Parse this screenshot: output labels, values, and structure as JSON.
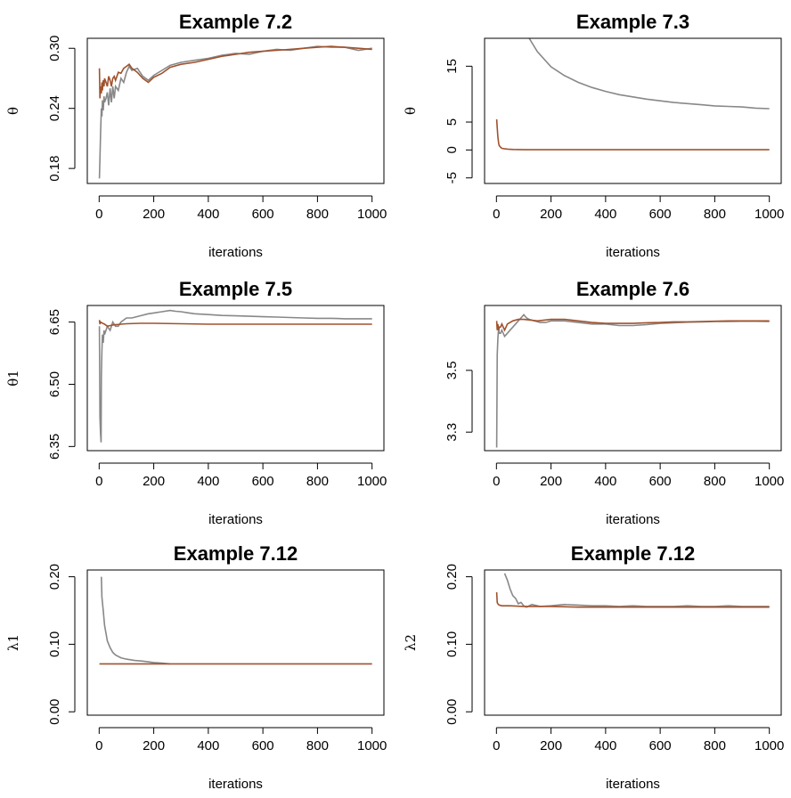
{
  "chart_data": [
    {
      "type": "line",
      "title": "Example 7.2",
      "xlabel": "iterations",
      "ylabel": "θ",
      "xlim": [
        0,
        1000
      ],
      "ylim": [
        0.165,
        0.31
      ],
      "xticks": [
        0,
        200,
        400,
        600,
        800,
        1000
      ],
      "yticks": [
        0.18,
        0.24,
        0.3
      ],
      "ytick_labels": [
        "0.18",
        "0.24",
        "0.30"
      ],
      "series": [
        {
          "color": "#888888",
          "x": [
            1,
            3,
            5,
            8,
            10,
            12,
            15,
            18,
            20,
            25,
            30,
            35,
            40,
            45,
            50,
            55,
            60,
            70,
            80,
            90,
            100,
            110,
            120,
            140,
            160,
            180,
            200,
            230,
            260,
            300,
            350,
            400,
            450,
            500,
            550,
            600,
            650,
            700,
            750,
            800,
            850,
            900,
            950,
            1000
          ],
          "y": [
            0.17,
            0.19,
            0.215,
            0.24,
            0.232,
            0.248,
            0.238,
            0.252,
            0.246,
            0.25,
            0.256,
            0.243,
            0.26,
            0.246,
            0.262,
            0.25,
            0.262,
            0.258,
            0.27,
            0.266,
            0.276,
            0.282,
            0.278,
            0.28,
            0.272,
            0.268,
            0.273,
            0.278,
            0.283,
            0.286,
            0.288,
            0.29,
            0.293,
            0.295,
            0.294,
            0.297,
            0.299,
            0.298,
            0.3,
            0.302,
            0.301,
            0.301,
            0.298,
            0.3
          ]
        },
        {
          "color": "#a0522d",
          "x": [
            1,
            3,
            5,
            8,
            10,
            12,
            15,
            18,
            20,
            25,
            30,
            35,
            40,
            45,
            50,
            55,
            60,
            70,
            80,
            90,
            100,
            110,
            120,
            140,
            160,
            180,
            200,
            230,
            260,
            300,
            350,
            400,
            450,
            500,
            550,
            600,
            650,
            700,
            750,
            800,
            850,
            900,
            950,
            1000
          ],
          "y": [
            0.28,
            0.25,
            0.262,
            0.255,
            0.266,
            0.258,
            0.268,
            0.262,
            0.27,
            0.266,
            0.262,
            0.272,
            0.268,
            0.262,
            0.27,
            0.272,
            0.268,
            0.276,
            0.275,
            0.28,
            0.282,
            0.284,
            0.28,
            0.276,
            0.27,
            0.266,
            0.271,
            0.275,
            0.281,
            0.284,
            0.286,
            0.289,
            0.292,
            0.294,
            0.296,
            0.297,
            0.298,
            0.299,
            0.3,
            0.301,
            0.302,
            0.301,
            0.3,
            0.299
          ]
        }
      ]
    },
    {
      "type": "line",
      "title": "Example 7.3",
      "xlabel": "iterations",
      "ylabel": "θ",
      "xlim": [
        0,
        1000
      ],
      "ylim": [
        -6,
        20
      ],
      "xticks": [
        0,
        200,
        400,
        600,
        800,
        1000
      ],
      "yticks": [
        -5,
        0,
        5,
        15
      ],
      "ytick_labels": [
        "-5",
        "0",
        "5",
        "15"
      ],
      "series": [
        {
          "color": "#888888",
          "x": [
            120,
            150,
            200,
            250,
            300,
            350,
            400,
            450,
            500,
            550,
            600,
            650,
            700,
            750,
            800,
            850,
            900,
            950,
            1000
          ],
          "y": [
            20.0,
            17.6,
            14.9,
            13.3,
            12.1,
            11.2,
            10.5,
            9.9,
            9.5,
            9.1,
            8.8,
            8.5,
            8.3,
            8.1,
            7.9,
            7.8,
            7.7,
            7.5,
            7.4
          ]
        },
        {
          "color": "#a0522d",
          "x": [
            1,
            3,
            5,
            8,
            10,
            15,
            20,
            30,
            40,
            60,
            100,
            200,
            400,
            600,
            800,
            1000
          ],
          "y": [
            5.5,
            4.0,
            2.4,
            1.2,
            0.8,
            0.5,
            0.3,
            0.2,
            0.15,
            0.1,
            0.05,
            0.05,
            0.05,
            0.05,
            0.05,
            0.05
          ]
        }
      ]
    },
    {
      "type": "line",
      "title": "Example 7.5",
      "xlabel": "iterations",
      "ylabel": "θ1",
      "xlim": [
        0,
        1000
      ],
      "ylim": [
        6.34,
        6.69
      ],
      "xticks": [
        0,
        200,
        400,
        600,
        800,
        1000
      ],
      "yticks": [
        6.35,
        6.5,
        6.65
      ],
      "ytick_labels": [
        "6.35",
        "6.50",
        "6.65"
      ],
      "series": [
        {
          "color": "#888888",
          "x": [
            1,
            3,
            5,
            7,
            8,
            10,
            12,
            15,
            18,
            20,
            25,
            30,
            40,
            50,
            60,
            70,
            80,
            100,
            120,
            150,
            180,
            200,
            230,
            260,
            280,
            300,
            330,
            350,
            400,
            450,
            500,
            550,
            600,
            650,
            700,
            750,
            800,
            850,
            900,
            950,
            1000
          ],
          "y": [
            6.64,
            6.42,
            6.38,
            6.36,
            6.52,
            6.58,
            6.62,
            6.6,
            6.63,
            6.62,
            6.63,
            6.64,
            6.63,
            6.65,
            6.64,
            6.64,
            6.65,
            6.66,
            6.66,
            6.665,
            6.67,
            6.672,
            6.675,
            6.678,
            6.676,
            6.675,
            6.672,
            6.67,
            6.668,
            6.666,
            6.665,
            6.664,
            6.663,
            6.662,
            6.661,
            6.66,
            6.659,
            6.659,
            6.658,
            6.658,
            6.658
          ]
        },
        {
          "color": "#a0522d",
          "x": [
            1,
            3,
            5,
            10,
            20,
            30,
            50,
            80,
            100,
            150,
            200,
            300,
            400,
            500,
            600,
            700,
            800,
            900,
            1000
          ],
          "y": [
            6.655,
            6.645,
            6.65,
            6.648,
            6.645,
            6.64,
            6.643,
            6.645,
            6.646,
            6.647,
            6.647,
            6.646,
            6.645,
            6.645,
            6.645,
            6.645,
            6.645,
            6.645,
            6.645
          ]
        }
      ]
    },
    {
      "type": "line",
      "title": "Example 7.6",
      "xlabel": "iterations",
      "ylabel": "",
      "xlim": [
        0,
        1000
      ],
      "ylim": [
        3.24,
        3.71
      ],
      "xticks": [
        0,
        200,
        400,
        600,
        800,
        1000
      ],
      "yticks": [
        3.3,
        3.5
      ],
      "ytick_labels": [
        "3.3",
        "3.5"
      ],
      "series": [
        {
          "color": "#888888",
          "x": [
            1,
            3,
            5,
            8,
            10,
            15,
            20,
            30,
            40,
            50,
            60,
            70,
            80,
            90,
            100,
            110,
            120,
            140,
            160,
            180,
            200,
            250,
            300,
            350,
            400,
            450,
            500,
            550,
            600,
            650,
            700,
            750,
            800,
            850,
            900,
            950,
            1000
          ],
          "y": [
            3.25,
            3.55,
            3.6,
            3.64,
            3.62,
            3.62,
            3.63,
            3.61,
            3.62,
            3.63,
            3.64,
            3.65,
            3.66,
            3.67,
            3.68,
            3.67,
            3.665,
            3.66,
            3.655,
            3.655,
            3.66,
            3.66,
            3.655,
            3.65,
            3.65,
            3.645,
            3.645,
            3.648,
            3.652,
            3.654,
            3.656,
            3.657,
            3.658,
            3.658,
            3.659,
            3.659,
            3.658
          ]
        },
        {
          "color": "#a0522d",
          "x": [
            1,
            3,
            5,
            8,
            10,
            15,
            20,
            30,
            40,
            60,
            80,
            100,
            150,
            200,
            250,
            300,
            350,
            400,
            450,
            500,
            550,
            600,
            650,
            700,
            750,
            800,
            850,
            900,
            950,
            1000
          ],
          "y": [
            3.66,
            3.63,
            3.65,
            3.63,
            3.64,
            3.64,
            3.65,
            3.63,
            3.65,
            3.66,
            3.665,
            3.665,
            3.66,
            3.665,
            3.665,
            3.66,
            3.655,
            3.652,
            3.652,
            3.652,
            3.654,
            3.655,
            3.657,
            3.657,
            3.658,
            3.659,
            3.66,
            3.66,
            3.66,
            3.66
          ]
        }
      ]
    },
    {
      "type": "line",
      "title": "Example 7.12",
      "xlabel": "iterations",
      "ylabel": "λ1",
      "xlim": [
        0,
        1000
      ],
      "ylim": [
        -0.005,
        0.21
      ],
      "xticks": [
        0,
        200,
        400,
        600,
        800,
        1000
      ],
      "yticks": [
        0.0,
        0.1,
        0.2
      ],
      "ytick_labels": [
        "0.00",
        "0.10",
        "0.20"
      ],
      "series": [
        {
          "color": "#888888",
          "x": [
            8,
            10,
            15,
            20,
            30,
            40,
            50,
            60,
            80,
            100,
            130,
            160,
            200,
            230,
            260
          ],
          "y": [
            0.2,
            0.17,
            0.15,
            0.128,
            0.105,
            0.095,
            0.088,
            0.084,
            0.08,
            0.078,
            0.076,
            0.075,
            0.073,
            0.072,
            0.071
          ]
        },
        {
          "color": "#a0522d",
          "x": [
            1,
            50,
            100,
            200,
            300,
            400,
            500,
            600,
            700,
            800,
            900,
            1000
          ],
          "y": [
            0.071,
            0.071,
            0.071,
            0.071,
            0.071,
            0.071,
            0.071,
            0.071,
            0.071,
            0.071,
            0.071,
            0.071
          ]
        }
      ]
    },
    {
      "type": "line",
      "title": "Example 7.12",
      "xlabel": "iterations",
      "ylabel": "λ2",
      "xlim": [
        0,
        1000
      ],
      "ylim": [
        -0.005,
        0.21
      ],
      "xticks": [
        0,
        200,
        400,
        600,
        800,
        1000
      ],
      "yticks": [
        0.0,
        0.1,
        0.2
      ],
      "ytick_labels": [
        "0.00",
        "0.10",
        "0.20"
      ],
      "series": [
        {
          "color": "#888888",
          "x": [
            30,
            40,
            50,
            60,
            70,
            80,
            90,
            100,
            110,
            130,
            160,
            200,
            250,
            300,
            350,
            400,
            450,
            500,
            550,
            600,
            650,
            700,
            750,
            800,
            850,
            900,
            950,
            1000
          ],
          "y": [
            0.205,
            0.195,
            0.182,
            0.172,
            0.168,
            0.16,
            0.162,
            0.157,
            0.155,
            0.159,
            0.156,
            0.157,
            0.159,
            0.158,
            0.157,
            0.157,
            0.156,
            0.157,
            0.156,
            0.156,
            0.156,
            0.157,
            0.156,
            0.156,
            0.157,
            0.156,
            0.156,
            0.156
          ]
        },
        {
          "color": "#a0522d",
          "x": [
            1,
            3,
            5,
            10,
            20,
            50,
            100,
            200,
            300,
            400,
            500,
            600,
            700,
            800,
            900,
            1000
          ],
          "y": [
            0.177,
            0.162,
            0.16,
            0.158,
            0.157,
            0.157,
            0.156,
            0.156,
            0.155,
            0.155,
            0.155,
            0.155,
            0.155,
            0.155,
            0.155,
            0.155
          ]
        }
      ]
    }
  ]
}
